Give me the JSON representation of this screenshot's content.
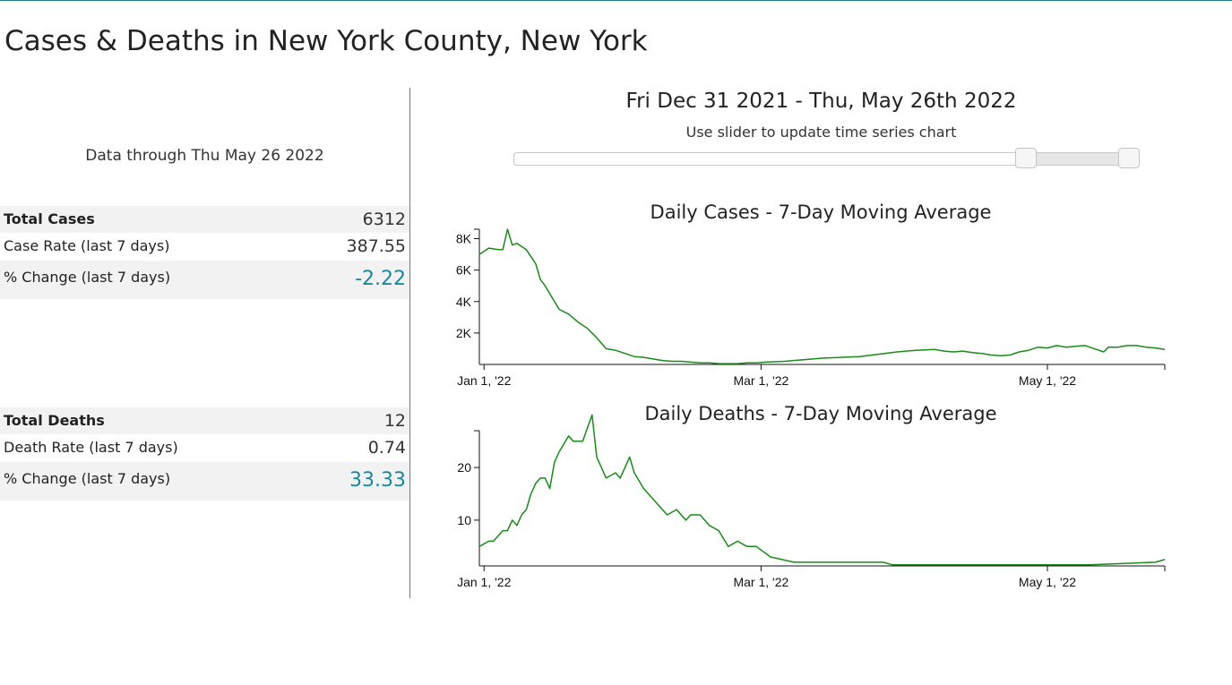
{
  "page": {
    "title": "Cases & Deaths in New York County, New York"
  },
  "summary": {
    "data_through": "Data through Thu May 26 2022",
    "cases": [
      {
        "label": "Total Cases",
        "value": "6312"
      },
      {
        "label": "Case Rate (last 7 days)",
        "value": "387.55"
      },
      {
        "label": "% Change (last 7 days)",
        "value": "-2.22"
      }
    ],
    "deaths": [
      {
        "label": "Total Deaths",
        "value": "12"
      },
      {
        "label": "Death Rate (last 7 days)",
        "value": "0.74"
      },
      {
        "label": "% Change (last 7 days)",
        "value": "33.33"
      }
    ]
  },
  "range": {
    "title": "Fri Dec 31 2021 - Thu, May 26th 2022",
    "hint": "Use slider to update time series chart",
    "selected_start_fraction": 0.82,
    "selected_end_fraction": 0.985
  },
  "colors": {
    "line": "#1a8a1a",
    "accent": "#17899b",
    "divider": "#3d8fa8"
  },
  "chart_data": [
    {
      "type": "line",
      "title": "Daily Cases - 7-Day Moving Average",
      "x_start": "2021-12-31",
      "x_end": "2022-05-26",
      "x_ticks": [
        {
          "date": "2022-01-01",
          "label": "Jan 1, '22"
        },
        {
          "date": "2022-03-01",
          "label": "Mar 1, '22"
        },
        {
          "date": "2022-05-01",
          "label": "May 1, '22"
        }
      ],
      "y_ticks": [
        {
          "value": 2000,
          "label": "2K"
        },
        {
          "value": 4000,
          "label": "4K"
        },
        {
          "value": 6000,
          "label": "6K"
        },
        {
          "value": 8000,
          "label": "8K"
        }
      ],
      "ylim": [
        0,
        8600
      ],
      "series": [
        {
          "x": [
            "2021-12-31",
            "2022-01-02",
            "2022-01-04",
            "2022-01-05",
            "2022-01-06",
            "2022-01-07",
            "2022-01-08",
            "2022-01-10",
            "2022-01-12",
            "2022-01-13",
            "2022-01-14",
            "2022-01-15",
            "2022-01-16",
            "2022-01-17",
            "2022-01-19",
            "2022-01-21",
            "2022-01-23",
            "2022-01-25",
            "2022-01-27",
            "2022-01-29",
            "2022-01-31",
            "2022-02-02",
            "2022-02-04",
            "2022-02-06",
            "2022-02-08",
            "2022-02-10",
            "2022-02-12",
            "2022-02-14",
            "2022-02-16",
            "2022-02-18",
            "2022-02-20",
            "2022-02-22",
            "2022-02-24",
            "2022-02-26",
            "2022-02-28",
            "2022-03-02",
            "2022-03-06",
            "2022-03-10",
            "2022-03-14",
            "2022-03-18",
            "2022-03-22",
            "2022-03-26",
            "2022-03-30",
            "2022-04-03",
            "2022-04-07",
            "2022-04-09",
            "2022-04-11",
            "2022-04-13",
            "2022-04-15",
            "2022-04-17",
            "2022-04-19",
            "2022-04-21",
            "2022-04-23",
            "2022-04-25",
            "2022-04-27",
            "2022-04-29",
            "2022-05-01",
            "2022-05-03",
            "2022-05-05",
            "2022-05-07",
            "2022-05-09",
            "2022-05-11",
            "2022-05-13",
            "2022-05-14",
            "2022-05-16",
            "2022-05-18",
            "2022-05-20",
            "2022-05-22",
            "2022-05-24",
            "2022-05-26"
          ],
          "y": [
            7000,
            7400,
            7300,
            7300,
            8600,
            7600,
            7700,
            7300,
            6400,
            5400,
            5000,
            4500,
            4000,
            3500,
            3200,
            2700,
            2300,
            1700,
            1000,
            900,
            700,
            500,
            450,
            350,
            250,
            200,
            200,
            150,
            100,
            100,
            50,
            50,
            50,
            100,
            100,
            150,
            200,
            300,
            400,
            450,
            500,
            650,
            800,
            900,
            950,
            850,
            800,
            850,
            750,
            700,
            600,
            550,
            600,
            800,
            900,
            1100,
            1050,
            1200,
            1100,
            1150,
            1200,
            1000,
            800,
            1100,
            1100,
            1200,
            1200,
            1100,
            1050,
            950
          ]
        }
      ]
    },
    {
      "type": "line",
      "title": "Daily Deaths - 7-Day Moving Average",
      "x_start": "2021-12-31",
      "x_end": "2022-05-26",
      "x_ticks": [
        {
          "date": "2022-01-01",
          "label": "Jan 1, '22"
        },
        {
          "date": "2022-03-01",
          "label": "Mar 1, '22"
        },
        {
          "date": "2022-05-01",
          "label": "May 1, '22"
        }
      ],
      "y_ticks": [
        {
          "value": 10,
          "label": "10"
        },
        {
          "value": 20,
          "label": "20"
        }
      ],
      "ylim": [
        1.3,
        27
      ],
      "series": [
        {
          "x": [
            "2021-12-31",
            "2022-01-02",
            "2022-01-03",
            "2022-01-04",
            "2022-01-05",
            "2022-01-06",
            "2022-01-07",
            "2022-01-08",
            "2022-01-09",
            "2022-01-10",
            "2022-01-11",
            "2022-01-12",
            "2022-01-13",
            "2022-01-14",
            "2022-01-15",
            "2022-01-16",
            "2022-01-17",
            "2022-01-19",
            "2022-01-20",
            "2022-01-22",
            "2022-01-24",
            "2022-01-25",
            "2022-01-27",
            "2022-01-29",
            "2022-01-30",
            "2022-02-01",
            "2022-02-02",
            "2022-02-04",
            "2022-02-05",
            "2022-02-07",
            "2022-02-09",
            "2022-02-11",
            "2022-02-13",
            "2022-02-14",
            "2022-02-16",
            "2022-02-18",
            "2022-02-20",
            "2022-02-22",
            "2022-02-24",
            "2022-02-26",
            "2022-02-28",
            "2022-03-03",
            "2022-03-08",
            "2022-03-25",
            "2022-03-27",
            "2022-03-29",
            "2022-04-01",
            "2022-05-10",
            "2022-05-24",
            "2022-05-26"
          ],
          "y": [
            5,
            6,
            6,
            7,
            8,
            8,
            10,
            9,
            11,
            12,
            15,
            17,
            18,
            18,
            16,
            21,
            23,
            26,
            25,
            25,
            30,
            22,
            18,
            19,
            18,
            22,
            19,
            16,
            15,
            13,
            11,
            12,
            10,
            11,
            11,
            9,
            8,
            5,
            6,
            5,
            5,
            3,
            2,
            2,
            2,
            1.5,
            1.5,
            1.5,
            2,
            2.5
          ]
        }
      ]
    }
  ]
}
